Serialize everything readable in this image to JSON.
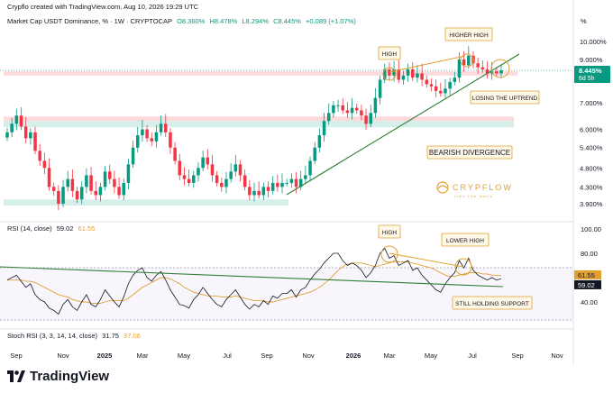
{
  "header": {
    "credit": "Crypflo created with TradingView.com, Aug 10, 2026 19:29 UTC",
    "symbol": "Market Cap USDT Dominance, % · 1W · CRYPTOCAP",
    "o": "O8.360%",
    "h": "H8.478%",
    "l": "L8.294%",
    "c": "C8.445%",
    "chg": "+0.089 (+1.07%)"
  },
  "axis_unit": "%",
  "price_ticks": [
    "10.000%",
    "9.000%",
    "8.000%",
    "7.000%",
    "6.000%",
    "5.400%",
    "4.800%",
    "4.300%",
    "3.900%"
  ],
  "price_badge": {
    "value": "8.445%",
    "countdown": "6d 5h"
  },
  "rsi_header": {
    "label": "RSI (14, close)",
    "rsi": "59.02",
    "ma": "61.55"
  },
  "rsi_ticks": [
    "100.00",
    "80.00",
    "40.00"
  ],
  "rsi_badges": {
    "ma": "61.55",
    "rsi": "59.02"
  },
  "stoch_header": {
    "label": "Stoch RSI (3, 3, 14, 14, close)",
    "k": "31.75",
    "d": "37.06"
  },
  "time_axis": [
    "Sep",
    "Nov",
    "2025",
    "Mar",
    "May",
    "Jul",
    "Sep",
    "Nov",
    "2026",
    "Mar",
    "May",
    "Jul",
    "Sep",
    "Nov"
  ],
  "annotations": {
    "high": "HIGH",
    "higher_high": "HIGHER HIGH",
    "losing_uptrend": "LOSING THE UPTREND",
    "bearish_divergence": "BEARISH DIVERGENCE",
    "rsi_high": "HIGH",
    "lower_high": "LOWER HIGH",
    "still_holding": "STILL HOLDING SUPPORT"
  },
  "logo": {
    "name": "CRYPFLOW",
    "tagline": "ride the wave"
  },
  "brand": "TradingView",
  "colors": {
    "up": "#089981",
    "down": "#f23645",
    "trend": "#2e7d32",
    "annotation": "#e0a030",
    "rsi_line": "#131722",
    "rsi_ma": "#e0a030"
  },
  "chart_data": {
    "type": "candlestick",
    "timeframe": "1W",
    "ylim": [
      3.8,
      10.2
    ],
    "log_scale": true,
    "close": [
      5.9,
      6.2,
      6.5,
      6.1,
      5.7,
      5.9,
      5.3,
      5.0,
      4.8,
      4.3,
      4.2,
      3.9,
      4.3,
      4.5,
      4.2,
      4.0,
      4.3,
      4.6,
      4.2,
      4.1,
      4.3,
      4.7,
      4.5,
      4.3,
      4.1,
      4.4,
      4.9,
      5.4,
      5.8,
      6.0,
      5.7,
      5.6,
      5.9,
      6.2,
      5.9,
      5.4,
      5.0,
      4.6,
      4.5,
      4.4,
      4.6,
      4.8,
      5.1,
      4.9,
      4.6,
      4.4,
      4.3,
      4.5,
      4.7,
      4.9,
      4.6,
      4.3,
      4.1,
      4.2,
      4.1,
      4.3,
      4.2,
      4.4,
      4.3,
      4.4,
      4.4,
      4.5,
      4.3,
      4.5,
      4.6,
      5.0,
      5.4,
      5.8,
      6.3,
      6.6,
      6.9,
      6.9,
      6.7,
      6.6,
      6.8,
      6.7,
      6.5,
      6.2,
      6.6,
      7.2,
      8.0,
      8.5,
      8.2,
      8.5,
      8.0,
      8.2,
      8.5,
      8.1,
      8.3,
      8.0,
      7.8,
      7.7,
      7.5,
      7.4,
      7.6,
      7.9,
      8.1,
      9.0,
      8.7,
      9.2,
      8.8,
      8.6,
      8.5,
      8.3,
      8.4,
      8.3,
      8.45
    ],
    "rsi": [
      58,
      60,
      62,
      57,
      52,
      55,
      46,
      42,
      40,
      35,
      33,
      30,
      38,
      42,
      36,
      33,
      40,
      46,
      38,
      36,
      42,
      50,
      45,
      40,
      36,
      44,
      55,
      62,
      66,
      68,
      60,
      57,
      62,
      65,
      58,
      50,
      44,
      38,
      37,
      35,
      42,
      46,
      52,
      47,
      42,
      38,
      36,
      42,
      46,
      50,
      44,
      38,
      34,
      38,
      36,
      41,
      38,
      45,
      43,
      47,
      47,
      50,
      44,
      50,
      52,
      58,
      63,
      67,
      72,
      76,
      80,
      80,
      74,
      70,
      72,
      70,
      66,
      60,
      64,
      70,
      80,
      84,
      76,
      78,
      70,
      72,
      74,
      66,
      68,
      62,
      58,
      54,
      50,
      48,
      55,
      60,
      64,
      74,
      68,
      76,
      66,
      62,
      60,
      58,
      60,
      58,
      59.02
    ],
    "rsi_ma": [
      58,
      58,
      58,
      58,
      57,
      57,
      56,
      54,
      52,
      50,
      48,
      46,
      45,
      44,
      42,
      41,
      40,
      40,
      39,
      39,
      39,
      40,
      41,
      41,
      41,
      41,
      43,
      46,
      49,
      52,
      54,
      56,
      58,
      60,
      60,
      59,
      57,
      55,
      52,
      50,
      48,
      47,
      46,
      45,
      45,
      45,
      44,
      44,
      44,
      45,
      44,
      43,
      42,
      41,
      41,
      41,
      40,
      40,
      41,
      42,
      43,
      44,
      45,
      46,
      47,
      48,
      50,
      52,
      55,
      58,
      62,
      66,
      69,
      71,
      72,
      72,
      72,
      71,
      70,
      69,
      70,
      71,
      72,
      73,
      73,
      73,
      73,
      72,
      71,
      70,
      69,
      68,
      66,
      64,
      62,
      61,
      61,
      62,
      63,
      64,
      64,
      64,
      63,
      63,
      62,
      62,
      61.55
    ],
    "rsi_ylim": [
      20,
      100
    ],
    "resistance_zone_top": [
      8.4,
      8.2
    ],
    "resistance_zone_mid": [
      6.4,
      6.2
    ],
    "support_zone": [
      4.0,
      3.9
    ]
  }
}
